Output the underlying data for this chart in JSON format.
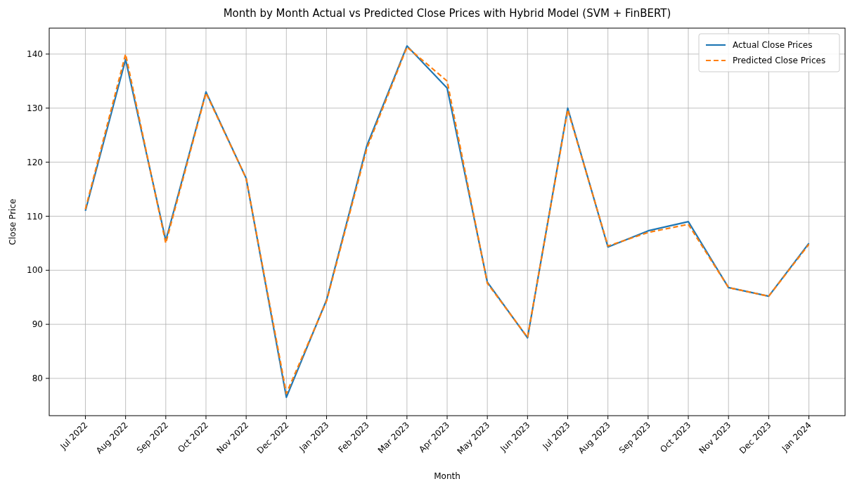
{
  "chart_data": {
    "type": "line",
    "title": "Month by Month Actual vs Predicted Close Prices with Hybrid Model (SVM + FinBERT)",
    "xlabel": "Month",
    "ylabel": "Close Price",
    "categories": [
      "Jul 2022",
      "Aug 2022",
      "Sep 2022",
      "Oct 2022",
      "Nov 2022",
      "Dec 2022",
      "Jan 2023",
      "Feb 2023",
      "Mar 2023",
      "Apr 2023",
      "May 2023",
      "Jun 2023",
      "Jul 2023",
      "Aug 2023",
      "Sep 2023",
      "Oct 2023",
      "Nov 2023",
      "Dec 2023",
      "Jan 2024"
    ],
    "series": [
      {
        "name": "Actual Close Prices",
        "color": "#1f77b4",
        "line_style": "solid",
        "values": [
          111,
          139,
          105.5,
          133,
          117,
          76.5,
          94.5,
          123,
          141.5,
          133.7,
          97.8,
          87.5,
          130,
          104.3,
          107.3,
          109,
          96.8,
          95.2,
          105
        ]
      },
      {
        "name": "Predicted Close Prices",
        "color": "#ff7f0e",
        "line_style": "dashed",
        "values": [
          111.3,
          140,
          105,
          132.8,
          117,
          77.2,
          94.3,
          122.5,
          141.3,
          135,
          97.6,
          87.6,
          129.7,
          104.5,
          107,
          108.5,
          96.8,
          95.2,
          104.8
        ]
      }
    ],
    "ylim": [
      73.1,
      144.8
    ],
    "yticks": [
      80,
      90,
      100,
      110,
      120,
      130,
      140
    ],
    "grid": true,
    "legend": "top right"
  }
}
